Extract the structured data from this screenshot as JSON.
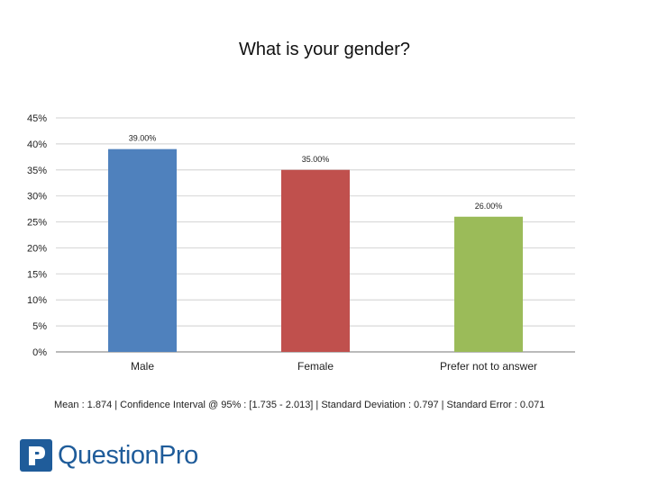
{
  "chart_data": {
    "type": "bar",
    "title": "What is your gender?",
    "categories": [
      "Male",
      "Female",
      "Prefer not to answer"
    ],
    "values": [
      39.0,
      35.0,
      26.0
    ],
    "data_labels": [
      "39.00%",
      "35.00%",
      "26.00%"
    ],
    "colors": [
      "#4f81bd",
      "#c0504d",
      "#9bbb59"
    ],
    "ylim": [
      0,
      45
    ],
    "yticks": [
      0,
      5,
      10,
      15,
      20,
      25,
      30,
      35,
      40,
      45
    ],
    "ytick_labels": [
      "0%",
      "5%",
      "10%",
      "15%",
      "20%",
      "25%",
      "30%",
      "35%",
      "40%",
      "45%"
    ],
    "grid": true,
    "legend": "none"
  },
  "stats_line": "Mean : 1.874  |  Confidence Interval @ 95% : [1.735 - 2.013]  |  Standard Deviation : 0.797  |  Standard Error : 0.071",
  "brand": {
    "name": "QuestionPro",
    "icon": "questionpro-logo-icon",
    "color": "#1f5c9a"
  }
}
